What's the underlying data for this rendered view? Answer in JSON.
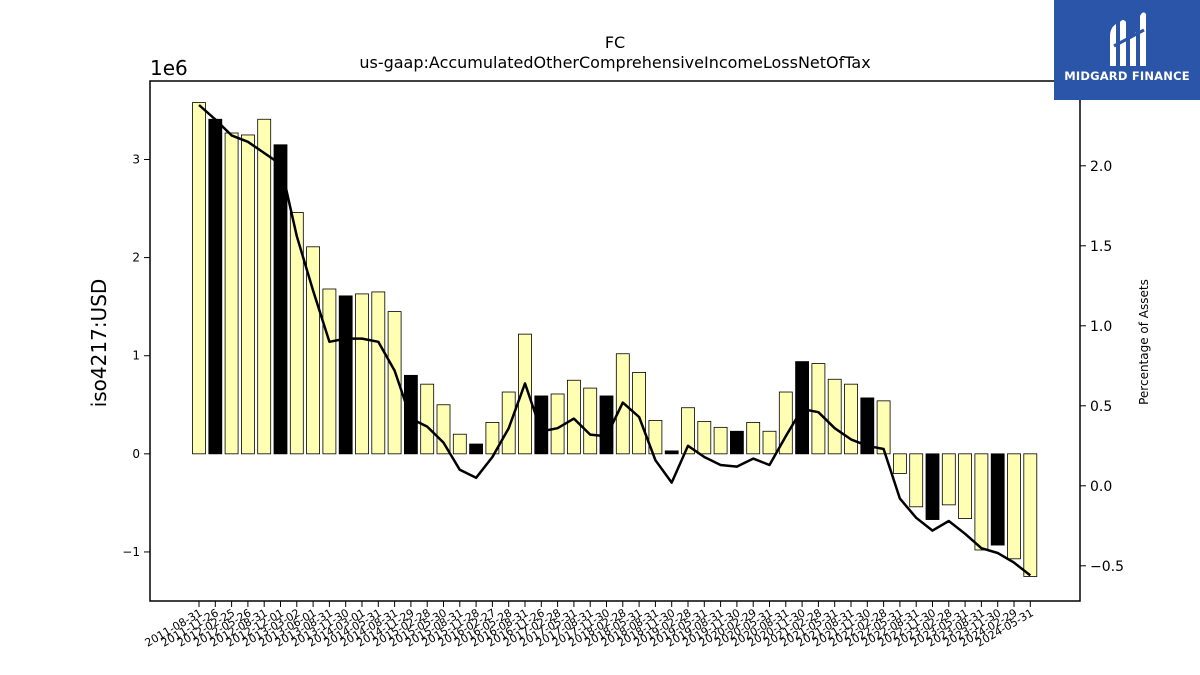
{
  "chart_data": {
    "type": "bar",
    "title": "FC",
    "subtitle": "us-gaap:AccumulatedOtherComprehensiveIncomeLossNetOfTax",
    "ylabel": "iso4217:USD",
    "y2label": "Percentage of Assets",
    "y_offset_text": "1e6",
    "ylim": [
      -1.5,
      3.8
    ],
    "y2lim": [
      -0.72,
      2.53
    ],
    "y_ticks": [
      -1,
      0,
      1,
      2,
      3
    ],
    "y_tick_labels": [
      "−1",
      "0",
      "1",
      "2",
      "3"
    ],
    "y2_ticks": [
      -0.5,
      0.0,
      0.5,
      1.0,
      1.5,
      2.0
    ],
    "y2_tick_labels": [
      "−0.5",
      "0.0",
      "0.5",
      "1.0",
      "1.5",
      "2.0"
    ],
    "categories": [
      "2011-08-31",
      "2011-11-26",
      "2012-02-25",
      "2012-05-26",
      "2012-08-31",
      "2012-12-01",
      "2013-03-02",
      "2013-06-01",
      "2013-08-31",
      "2013-11-30",
      "2014-03-01",
      "2014-05-31",
      "2014-08-31",
      "2014-11-29",
      "2015-02-28",
      "2015-05-30",
      "2015-08-31",
      "2015-11-28",
      "2016-02-27",
      "2016-05-28",
      "2016-08-31",
      "2016-11-26",
      "2017-02-28",
      "2017-05-31",
      "2017-08-31",
      "2017-11-30",
      "2018-02-28",
      "2018-05-31",
      "2018-08-31",
      "2018-11-30",
      "2019-02-28",
      "2019-05-31",
      "2019-08-31",
      "2019-11-30",
      "2020-02-29",
      "2020-05-31",
      "2020-08-31",
      "2020-11-30",
      "2021-02-28",
      "2021-05-31",
      "2021-08-31",
      "2021-11-30",
      "2022-02-28",
      "2022-05-31",
      "2022-08-31",
      "2022-11-30",
      "2023-02-28",
      "2023-05-31",
      "2023-08-31",
      "2023-11-30",
      "2024-02-29",
      "2024-05-31"
    ],
    "series": [
      {
        "type": "bar",
        "values": [
          3.58,
          3.41,
          3.27,
          3.25,
          3.41,
          3.15,
          2.46,
          2.11,
          1.68,
          1.61,
          1.63,
          1.65,
          1.45,
          0.8,
          0.71,
          0.5,
          0.2,
          0.1,
          0.32,
          0.63,
          1.22,
          0.59,
          0.61,
          0.75,
          0.67,
          0.59,
          1.02,
          0.83,
          0.34,
          0.03,
          0.47,
          0.33,
          0.27,
          0.23,
          0.32,
          0.23,
          0.63,
          0.94,
          0.92,
          0.76,
          0.71,
          0.57,
          0.54,
          -0.2,
          -0.54,
          -0.67,
          -0.52,
          -0.66,
          -0.98,
          -0.93,
          -1.07,
          -1.25
        ],
        "highlight": [
          false,
          true,
          false,
          false,
          false,
          true,
          false,
          false,
          false,
          true,
          false,
          false,
          false,
          true,
          false,
          false,
          false,
          true,
          false,
          false,
          false,
          true,
          false,
          false,
          false,
          true,
          false,
          false,
          false,
          true,
          false,
          false,
          false,
          true,
          false,
          false,
          false,
          true,
          false,
          false,
          false,
          true,
          false,
          false,
          false,
          true,
          false,
          false,
          false,
          true,
          false,
          false
        ]
      },
      {
        "type": "line",
        "axis": "right",
        "values": [
          2.38,
          2.29,
          2.19,
          2.15,
          2.08,
          2.01,
          1.56,
          1.22,
          0.9,
          0.92,
          0.92,
          0.9,
          0.72,
          0.42,
          0.37,
          0.27,
          0.1,
          0.05,
          0.18,
          0.36,
          0.64,
          0.34,
          0.36,
          0.42,
          0.32,
          0.31,
          0.52,
          0.43,
          0.16,
          0.02,
          0.25,
          0.18,
          0.13,
          0.12,
          0.17,
          0.13,
          0.31,
          0.48,
          0.46,
          0.36,
          0.29,
          0.25,
          0.23,
          -0.08,
          -0.2,
          -0.28,
          -0.22,
          -0.3,
          -0.39,
          -0.42,
          -0.48,
          -0.56
        ]
      }
    ],
    "colors": {
      "bar_fill": "#ffffb3",
      "bar_highlight": "#000000",
      "bar_edge": "#000000",
      "line": "#000000"
    }
  },
  "logo": {
    "text": "MIDGARD FINANCE",
    "background": "#2a55a8"
  }
}
